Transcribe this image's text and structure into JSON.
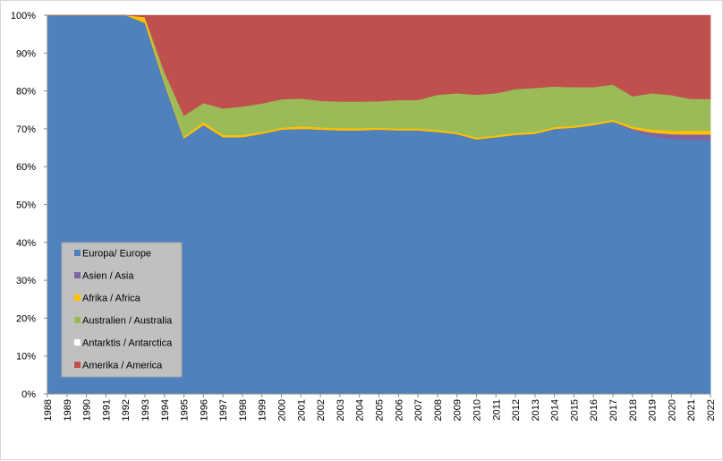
{
  "chart_data": {
    "type": "area",
    "stacked": true,
    "percent": true,
    "title": "",
    "xlabel": "",
    "ylabel": "",
    "x": [
      1988,
      1989,
      1990,
      1991,
      1992,
      1993,
      1994,
      1995,
      1996,
      1997,
      1998,
      1999,
      2000,
      2001,
      2002,
      2003,
      2004,
      2005,
      2006,
      2007,
      2008,
      2009,
      2010,
      2011,
      2012,
      2013,
      2014,
      2015,
      2016,
      2017,
      2018,
      2019,
      2020,
      2021,
      2022
    ],
    "ylim": [
      0,
      100
    ],
    "yticks": [
      "0%",
      "10%",
      "20%",
      "30%",
      "40%",
      "50%",
      "60%",
      "70%",
      "80%",
      "90%",
      "100%"
    ],
    "grid": false,
    "legend_position": "inside-bottom-left",
    "series": [
      {
        "name": "Europa/ Europe",
        "color": "#4f81bd",
        "values": [
          100,
          100,
          100,
          100,
          100,
          98,
          82,
          67.5,
          71,
          67.8,
          67.8,
          68.7,
          69.8,
          70,
          69.8,
          69.6,
          69.6,
          69.8,
          69.6,
          69.6,
          69.2,
          68.6,
          67.2,
          67.8,
          68.4,
          68.7,
          70,
          70.3,
          71,
          71.9,
          69.5,
          68,
          67.3,
          67,
          67
        ]
      },
      {
        "name": "Asien / Asia",
        "color": "#8064a2",
        "values": [
          0,
          0,
          0,
          0,
          0,
          0,
          0,
          0,
          0,
          0,
          0,
          0,
          0,
          0,
          0,
          0,
          0,
          0,
          0,
          0,
          0,
          0,
          0,
          0,
          0,
          0,
          0,
          0,
          0,
          0,
          0.5,
          1,
          1.3,
          1.5,
          1.5
        ]
      },
      {
        "name": "Afrika / Africa",
        "color": "#ffc000",
        "values": [
          0,
          0,
          0,
          0,
          0,
          1.5,
          0.5,
          0.5,
          0.8,
          0.6,
          0.6,
          0.5,
          0.5,
          0.7,
          0.6,
          0.6,
          0.6,
          0.5,
          0.5,
          0.5,
          0.5,
          0.5,
          0.5,
          0.5,
          0.5,
          0.5,
          0.5,
          0.5,
          0.5,
          0.5,
          0.6,
          0.8,
          0.9,
          1,
          1
        ]
      },
      {
        "name": "Australien / Australia",
        "color": "#9bbb59",
        "values": [
          0,
          0,
          0,
          0,
          0,
          0,
          2.5,
          5.5,
          5,
          7,
          7.5,
          7.5,
          7.5,
          7.3,
          7,
          7,
          7,
          7,
          7.5,
          7.5,
          9.3,
          10.3,
          11.3,
          11.1,
          11.6,
          11.6,
          10.7,
          10.2,
          9.5,
          9.3,
          8,
          9.6,
          9.4,
          8.4,
          8.4
        ]
      },
      {
        "name": "Antarktis / Antarctica",
        "color": "#ffffff",
        "values": [
          0,
          0,
          0,
          0,
          0,
          0,
          0,
          0,
          0,
          0,
          0,
          0,
          0,
          0,
          0,
          0,
          0,
          0,
          0,
          0,
          0,
          0,
          0,
          0,
          0,
          0,
          0,
          0,
          0,
          0,
          0,
          0,
          0,
          0,
          0
        ]
      },
      {
        "name": "Amerika / America",
        "color": "#c0504d",
        "values": [
          0,
          0,
          0,
          0,
          0,
          0.5,
          15,
          26.5,
          23.2,
          24.6,
          24.1,
          23.3,
          22.2,
          22,
          22.6,
          22.8,
          22.8,
          22.7,
          22.4,
          22.4,
          21,
          20.6,
          21,
          20.6,
          19.5,
          19.2,
          18.8,
          19,
          19,
          18.3,
          21.4,
          20.6,
          21.1,
          22.1,
          22.1
        ]
      }
    ]
  }
}
